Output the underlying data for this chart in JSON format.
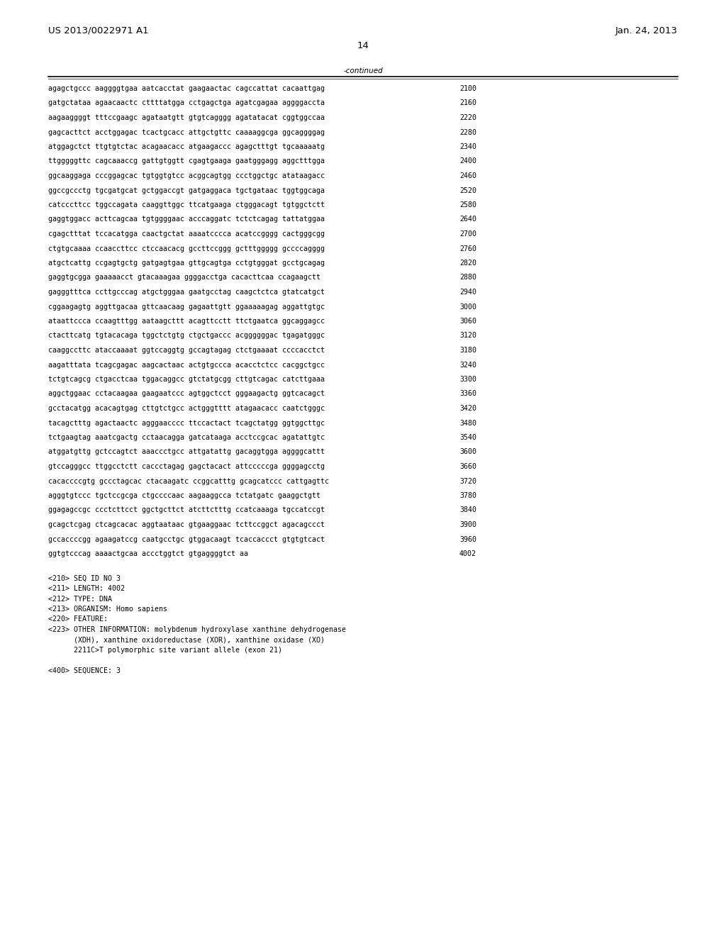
{
  "header_left": "US 2013/0022971 A1",
  "header_right": "Jan. 24, 2013",
  "page_number": "14",
  "continued_label": "-continued",
  "sequence_lines": [
    [
      "agagctgccc aaggggtgaa aatcacctat gaagaactac cagccattat cacaattgag",
      "2100"
    ],
    [
      "gatgctataa agaacaactc cttttatgga cctgagctga agatcgagaa aggggaccta",
      "2160"
    ],
    [
      "aagaaggggt tttccgaagc agataatgtt gtgtcagggg agatatacat cggtggccaa",
      "2220"
    ],
    [
      "gagcacttct acctggagac tcactgcacc attgctgttc caaaaggcga ggcaggggag",
      "2280"
    ],
    [
      "atggagctct ttgtgtctac acagaacacc atgaagaccc agagctttgt tgcaaaaatg",
      "2340"
    ],
    [
      "ttgggggttc cagcaaaccg gattgtggtt cgagtgaaga gaatgggagg aggctttgga",
      "2400"
    ],
    [
      "ggcaaggaga cccggagcac tgtggtgtcc acggcagtgg ccctggctgc atataagacc",
      "2460"
    ],
    [
      "ggccgccctg tgcgatgcat gctggaccgt gatgaggaca tgctgataac tggtggcaga",
      "2520"
    ],
    [
      "catcccttcc tggccagata caaggttggc ttcatgaaga ctgggacagt tgtggctctt",
      "2580"
    ],
    [
      "gaggtggacc acttcagcaa tgtggggaac acccaggatc tctctcagag tattatggaa",
      "2640"
    ],
    [
      "cgagctttat tccacatgga caactgctat aaaatcccca acatccgggg cactgggcgg",
      "2700"
    ],
    [
      "ctgtgcaaaa ccaaccttcc ctccaacacg gccttccggg gctttggggg gccccagggg",
      "2760"
    ],
    [
      "atgctcattg ccgagtgctg gatgagtgaa gttgcagtga cctgtgggat gcctgcagag",
      "2820"
    ],
    [
      "gaggtgcgga gaaaaacct gtacaaagaa ggggacctga cacacttcaa ccagaagctt",
      "2880"
    ],
    [
      "gagggtttca ccttgcccag atgctgggaa gaatgcctag caagctctca gtatcatgct",
      "2940"
    ],
    [
      "cggaagagtg aggttgacaa gttcaacaag gagaattgtt ggaaaaagag aggattgtgc",
      "3000"
    ],
    [
      "ataattccca ccaagtttgg aataagcttt acagttcctt ttctgaatca ggcaggagcc",
      "3060"
    ],
    [
      "ctacttcatg tgtacacaga tggctctgtg ctgctgaccc acggggggac tgagatgggc",
      "3120"
    ],
    [
      "caaggccttc ataccaaaat ggtccaggtg gccagtagag ctctgaaaat ccccacctct",
      "3180"
    ],
    [
      "aagatttata tcagcgagac aagcactaac actgtgccca acacctctcc cacggctgcc",
      "3240"
    ],
    [
      "tctgtcagcg ctgacctcaa tggacaggcc gtctatgcgg cttgtcagac catcttgaaa",
      "3300"
    ],
    [
      "aggctggaac cctacaagaa gaagaatccc agtggctcct gggaagactg ggtcacagct",
      "3360"
    ],
    [
      "gcctacatgg acacagtgag cttgtctgcc actgggtttt atagaacacc caatctgggc",
      "3420"
    ],
    [
      "tacagctttg agactaactc agggaacccc ttccactact tcagctatgg ggtggcttgc",
      "3480"
    ],
    [
      "tctgaagtag aaatcgactg cctaacagga gatcataaga acctccgcac agatattgtc",
      "3540"
    ],
    [
      "atggatgttg gctccagtct aaaccctgcc attgatattg gacaggtgga aggggcattt",
      "3600"
    ],
    [
      "gtccagggcc ttggcctctt caccctagag gagctacact attcccccga ggggagcctg",
      "3660"
    ],
    [
      "cacaccccgtg gccctagcac ctacaagatc ccggcatttg gcagcatccc cattgagttc",
      "3720"
    ],
    [
      "agggtgtccc tgctccgcga ctgccccaac aagaaggcca tctatgatc gaaggctgtt",
      "3780"
    ],
    [
      "ggagagccgc ccctcttcct ggctgcttct atcttctttg ccatcaaaga tgccatccgt",
      "3840"
    ],
    [
      "gcagctcgag ctcagcacac aggtaataac gtgaaggaac tcttccggct agacagccct",
      "3900"
    ],
    [
      "gccaccccgg agaagatccg caatgcctgc gtggacaagt tcaccaccct gtgtgtcact",
      "3960"
    ],
    [
      "ggtgtcccag aaaactgcaa accctggtct gtgaggggtct aa",
      "4002"
    ]
  ],
  "metadata_lines": [
    "<210> SEQ ID NO 3",
    "<211> LENGTH: 4002",
    "<212> TYPE: DNA",
    "<213> ORGANISM: Homo sapiens",
    "<220> FEATURE:",
    "<223> OTHER INFORMATION: molybdenum hydroxylase xanthine dehydrogenase",
    "      (XDH), xanthine oxidoreductase (XOR), xanthine oxidase (XO)",
    "      2211C>T polymorphic site variant allele (exon 21)",
    "",
    "<400> SEQUENCE: 3"
  ],
  "bg_color": "#ffffff",
  "text_color": "#000000",
  "font_size_header": 9.5,
  "font_size_body": 7.5,
  "font_size_page": 9.5,
  "font_size_seq": 7.2
}
